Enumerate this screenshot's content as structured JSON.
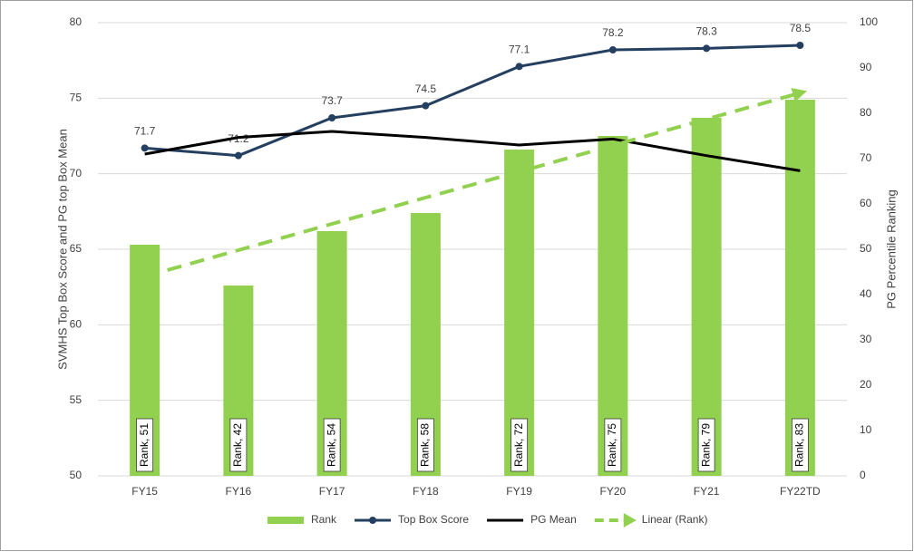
{
  "chart_data": {
    "type": "combo",
    "y_axis_label": "SVMHS Top Box Score and PG top Box Mean",
    "y2_axis_label": "PG Percentile Ranking",
    "categories": [
      "FY15",
      "FY16",
      "FY17",
      "FY18",
      "FY19",
      "FY20",
      "FY21",
      "FY22TD"
    ],
    "ylim": [
      50,
      80
    ],
    "yticks": [
      50,
      55,
      60,
      65,
      70,
      75,
      80
    ],
    "y2lim": [
      0,
      100
    ],
    "y2ticks": [
      0,
      10,
      20,
      30,
      40,
      50,
      60,
      70,
      80,
      90,
      100
    ],
    "grid": true,
    "legend": "bottom",
    "series": [
      {
        "name": "Rank",
        "type": "bar",
        "axis": "y2",
        "color": "#92d050",
        "values": [
          51,
          42,
          54,
          58,
          72,
          75,
          79,
          83
        ],
        "value_labels": [
          "Rank, 51",
          "Rank, 42",
          "Rank, 54",
          "Rank, 58",
          "Rank, 72",
          "Rank, 75",
          "Rank, 79",
          "Rank, 83"
        ]
      },
      {
        "name": "Top Box Score",
        "type": "line",
        "color": "#243f60",
        "marker": "circle",
        "labels": true,
        "values": [
          71.7,
          71.2,
          73.7,
          74.5,
          77.1,
          78.2,
          78.3,
          78.5
        ]
      },
      {
        "name": "PG Mean",
        "type": "line",
        "color": "#000000",
        "values": [
          71.3,
          72.4,
          72.8,
          72.4,
          71.9,
          72.3,
          71.2,
          70.2
        ]
      },
      {
        "name": "Linear (Rank)",
        "type": "line",
        "axis": "y2",
        "color": "#92d050",
        "dashed": true,
        "marker": "arrow",
        "values": [
          44.0,
          49.8,
          55.6,
          61.4,
          67.1,
          72.9,
          78.7,
          84.5
        ]
      }
    ]
  }
}
